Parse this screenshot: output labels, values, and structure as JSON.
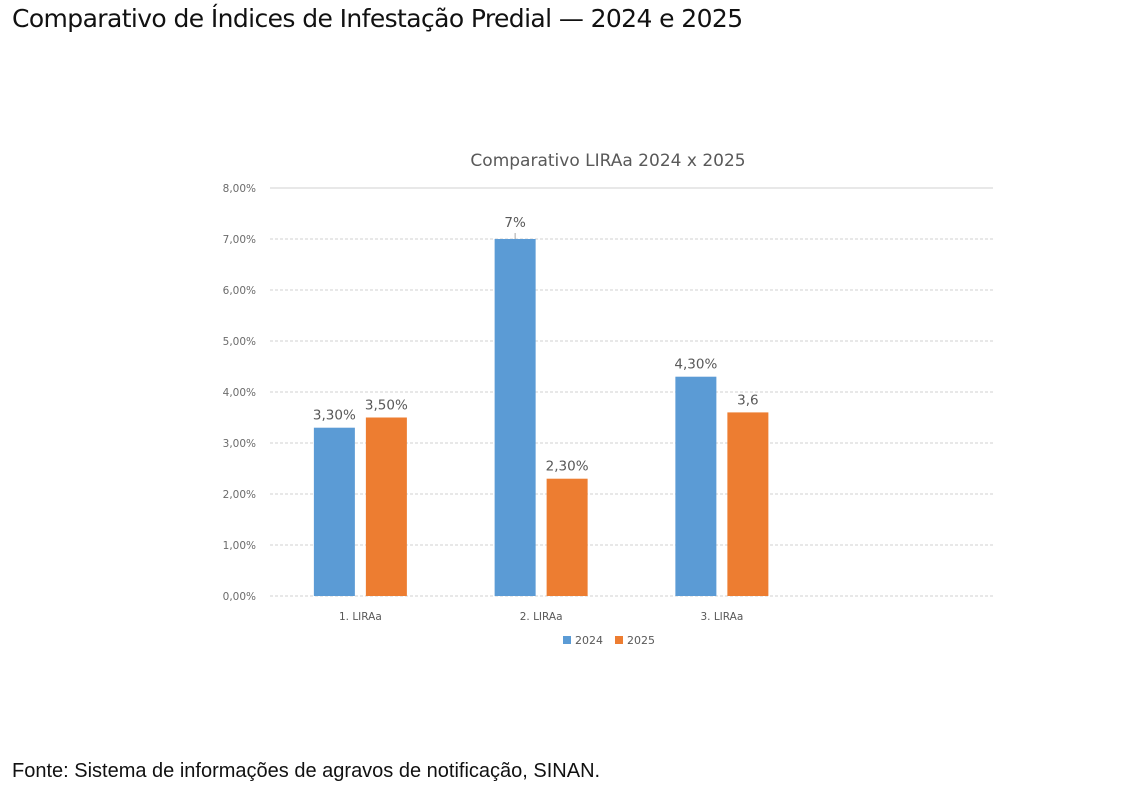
{
  "page": {
    "title": "Comparativo de Índices de Infestação Predial — 2024 e 2025",
    "source": "Fonte: Sistema de informações de agravos de notificação, SINAN."
  },
  "chart_data": {
    "type": "bar",
    "title": "Comparativo LIRAa 2024 x 2025",
    "xlabel": "",
    "ylabel": "",
    "categories": [
      "1. LIRAa",
      "2. LIRAa",
      "3. LIRAa"
    ],
    "category_slots": 4,
    "series": [
      {
        "name": "2024",
        "color": "#5B9BD5",
        "values": [
          3.3,
          7.0,
          4.3
        ],
        "labels": [
          "3,30%",
          "7%",
          "4,30%"
        ]
      },
      {
        "name": "2025",
        "color": "#ED7D31",
        "values": [
          3.5,
          2.3,
          3.6
        ],
        "labels": [
          "3,50%",
          "2,30%",
          "3,6"
        ]
      }
    ],
    "ylim": [
      0,
      8
    ],
    "yticks": [
      0,
      1,
      2,
      3,
      4,
      5,
      6,
      7,
      8
    ],
    "ytick_labels": [
      "0,00%",
      "1,00%",
      "2,00%",
      "3,00%",
      "4,00%",
      "5,00%",
      "6,00%",
      "7,00%",
      "8,00%"
    ],
    "grid": true,
    "legend": {
      "position": "bottom",
      "entries": [
        "2024",
        "2025"
      ]
    }
  }
}
